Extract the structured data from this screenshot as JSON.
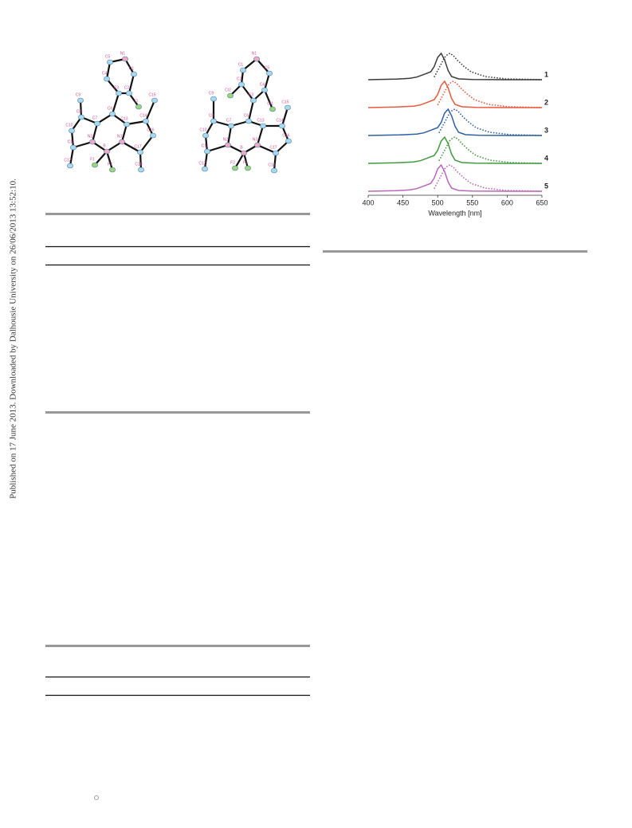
{
  "sidebar": "Published on 17 June 2013. Downloaded by Dalhousie University on 26/06/2013 13:52:10.",
  "structures": [
    {
      "atoms": [
        "N1",
        "C5",
        "C1",
        "C4",
        "C3",
        "C2",
        "Cl",
        "C15",
        "C9",
        "C6",
        "C7",
        "C8",
        "C13",
        "C14",
        "C10",
        "C16",
        "N2",
        "N3",
        "B",
        "C11",
        "C17",
        "F1",
        "F2",
        "C12",
        "C18"
      ]
    },
    {
      "atoms": [
        "N1",
        "C1",
        "C5",
        "C2",
        "C4",
        "C3",
        "Cl2",
        "Cl1",
        "C15",
        "C9",
        "C6",
        "C7",
        "C8",
        "C13",
        "C14",
        "C10",
        "C16",
        "N2",
        "N3",
        "B",
        "C11",
        "C17",
        "F2",
        "F1",
        "C12",
        "C18"
      ]
    }
  ],
  "chart_data": {
    "type": "line",
    "xlabel": "Wavelength [nm]",
    "xlim": [
      400,
      650
    ],
    "xticks": [
      400,
      450,
      500,
      550,
      600,
      650
    ],
    "series": [
      {
        "name": "1",
        "color": "#3a3a3a",
        "x": [
          400,
          440,
          460,
          470,
          480,
          490,
          495,
          500,
          505,
          510,
          515,
          520,
          530,
          550,
          600,
          650
        ],
        "values": [
          0,
          0.02,
          0.05,
          0.1,
          0.2,
          0.3,
          0.5,
          0.85,
          1,
          0.75,
          0.35,
          0.12,
          0.03,
          0.01,
          0,
          0
        ],
        "emission_x": [
          495,
          500,
          505,
          510,
          515,
          518,
          523,
          528,
          538,
          548,
          568,
          598,
          650
        ],
        "emission_values": [
          0.1,
          0.35,
          0.6,
          0.85,
          0.98,
          1,
          0.9,
          0.75,
          0.5,
          0.3,
          0.12,
          0.03,
          0
        ]
      },
      {
        "name": "2",
        "color": "#e8583a",
        "x": [
          400,
          440,
          465,
          475,
          485,
          495,
          500,
          505,
          510,
          515,
          520,
          525,
          535,
          555,
          600,
          650
        ],
        "values": [
          0,
          0.02,
          0.05,
          0.1,
          0.2,
          0.3,
          0.5,
          0.85,
          1,
          0.75,
          0.35,
          0.12,
          0.03,
          0.01,
          0,
          0
        ],
        "emission_x": [
          500,
          505,
          510,
          515,
          520,
          523,
          528,
          533,
          543,
          553,
          573,
          603,
          650
        ],
        "emission_values": [
          0.1,
          0.35,
          0.6,
          0.85,
          0.98,
          1,
          0.9,
          0.75,
          0.5,
          0.3,
          0.12,
          0.03,
          0
        ]
      },
      {
        "name": "3",
        "color": "#2f5f9e",
        "x": [
          400,
          445,
          470,
          480,
          490,
          500,
          505,
          510,
          515,
          520,
          525,
          530,
          540,
          560,
          600,
          650
        ],
        "values": [
          0,
          0.02,
          0.05,
          0.1,
          0.2,
          0.3,
          0.5,
          0.85,
          1,
          0.75,
          0.35,
          0.12,
          0.03,
          0.01,
          0,
          0
        ],
        "emission_x": [
          502,
          507,
          512,
          517,
          522,
          525,
          530,
          535,
          545,
          555,
          575,
          605,
          650
        ],
        "emission_values": [
          0.1,
          0.35,
          0.6,
          0.85,
          0.98,
          1,
          0.9,
          0.75,
          0.5,
          0.3,
          0.12,
          0.03,
          0
        ]
      },
      {
        "name": "4",
        "color": "#3f9a3f",
        "x": [
          400,
          440,
          465,
          475,
          485,
          495,
          500,
          505,
          510,
          515,
          520,
          525,
          535,
          555,
          600,
          650
        ],
        "values": [
          0,
          0.02,
          0.05,
          0.1,
          0.2,
          0.3,
          0.5,
          0.85,
          1,
          0.75,
          0.35,
          0.12,
          0.03,
          0.01,
          0,
          0
        ],
        "emission_x": [
          502,
          507,
          512,
          517,
          522,
          525,
          530,
          535,
          545,
          555,
          575,
          605,
          650
        ],
        "emission_values": [
          0.1,
          0.35,
          0.6,
          0.85,
          0.98,
          1,
          0.9,
          0.75,
          0.5,
          0.3,
          0.12,
          0.03,
          0
        ]
      },
      {
        "name": "5",
        "color": "#b866b8",
        "x": [
          400,
          440,
          460,
          470,
          480,
          490,
          495,
          500,
          505,
          510,
          515,
          520,
          530,
          550,
          600,
          650
        ],
        "values": [
          0,
          0.02,
          0.05,
          0.1,
          0.2,
          0.3,
          0.5,
          0.85,
          1,
          0.75,
          0.35,
          0.12,
          0.03,
          0.01,
          0,
          0
        ],
        "emission_x": [
          495,
          500,
          505,
          510,
          515,
          518,
          523,
          528,
          538,
          548,
          568,
          598,
          650
        ],
        "emission_values": [
          0.1,
          0.35,
          0.6,
          0.85,
          0.98,
          1,
          0.9,
          0.75,
          0.5,
          0.3,
          0.12,
          0.03,
          0
        ]
      }
    ]
  }
}
